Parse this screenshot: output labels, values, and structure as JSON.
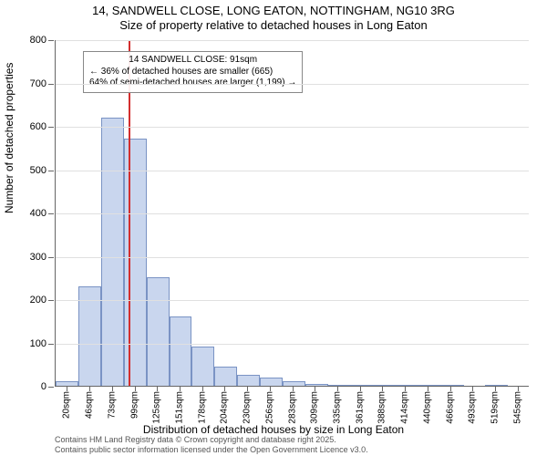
{
  "title": {
    "line1": "14, SANDWELL CLOSE, LONG EATON, NOTTINGHAM, NG10 3RG",
    "line2": "Size of property relative to detached houses in Long Eaton"
  },
  "chart": {
    "type": "histogram",
    "ylabel": "Number of detached properties",
    "xlabel": "Distribution of detached houses by size in Long Eaton",
    "ylim": [
      0,
      800
    ],
    "ytick_step": 100,
    "yticks": [
      0,
      100,
      200,
      300,
      400,
      500,
      600,
      700,
      800
    ],
    "bar_fill": "#c9d6ee",
    "bar_stroke": "#7a93c4",
    "grid_color": "#e0e0e0",
    "background_color": "#ffffff",
    "marker_color": "#d32f2f",
    "marker_value_sqm": 91,
    "bins": [
      {
        "label": "20sqm",
        "value": 10
      },
      {
        "label": "46sqm",
        "value": 230
      },
      {
        "label": "73sqm",
        "value": 620
      },
      {
        "label": "99sqm",
        "value": 570
      },
      {
        "label": "125sqm",
        "value": 250
      },
      {
        "label": "151sqm",
        "value": 160
      },
      {
        "label": "178sqm",
        "value": 90
      },
      {
        "label": "204sqm",
        "value": 45
      },
      {
        "label": "230sqm",
        "value": 25
      },
      {
        "label": "256sqm",
        "value": 20
      },
      {
        "label": "283sqm",
        "value": 10
      },
      {
        "label": "309sqm",
        "value": 5
      },
      {
        "label": "335sqm",
        "value": 3
      },
      {
        "label": "361sqm",
        "value": 2
      },
      {
        "label": "388sqm",
        "value": 2
      },
      {
        "label": "414sqm",
        "value": 1
      },
      {
        "label": "440sqm",
        "value": 1
      },
      {
        "label": "466sqm",
        "value": 1
      },
      {
        "label": "493sqm",
        "value": 0
      },
      {
        "label": "519sqm",
        "value": 1
      },
      {
        "label": "545sqm",
        "value": 0
      }
    ],
    "annotation": {
      "line1": "14 SANDWELL CLOSE: 91sqm",
      "line2": "← 36% of detached houses are smaller (665)",
      "line3": "64% of semi-detached houses are larger (1,199) →"
    }
  },
  "footer": {
    "line1": "Contains HM Land Registry data © Crown copyright and database right 2025.",
    "line2": "Contains public sector information licensed under the Open Government Licence v3.0."
  }
}
